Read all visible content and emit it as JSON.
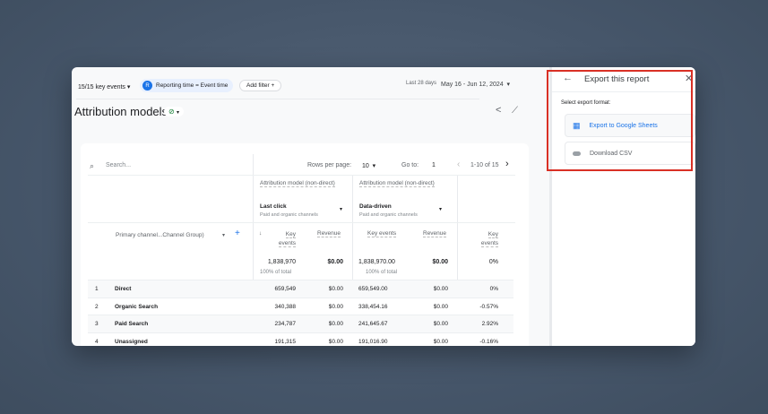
{
  "toolbar": {
    "key_events": "15/15 key events",
    "reporting_badge": "R",
    "reporting": "Reporting time = Event time",
    "add_filter": "Add filter",
    "date_label": "Last 28 days",
    "date_range": "May 16 - Jun 12, 2024"
  },
  "page": {
    "title": "Attribution models"
  },
  "table": {
    "search_placeholder": "Search...",
    "rows_per_page_label": "Rows per page:",
    "rows_per_page": "10",
    "goto_label": "Go to:",
    "goto": "1",
    "range": "1-10 of 15",
    "group1": {
      "title": "Attribution model (non-direct)",
      "model": "Last click",
      "sub": "Paid and organic channels"
    },
    "group2": {
      "title": "Attribution model (non-direct)",
      "model": "Data-driven",
      "sub": "Paid and organic channels"
    },
    "dimension": "Primary channel...Channel Group)",
    "cols": {
      "key_events": "Key events",
      "revenue": "Revenue"
    },
    "totals": {
      "k1": "1,838,970",
      "r1": "$0.00",
      "k2": "1,838,970.00",
      "r2": "$0.00",
      "pct": "0%",
      "of_total": "100% of total"
    },
    "rows": [
      {
        "n": "1",
        "name": "Direct",
        "k1": "659,549",
        "r1": "$0.00",
        "k2": "659,549.00",
        "r2": "$0.00",
        "pct": "0%"
      },
      {
        "n": "2",
        "name": "Organic Search",
        "k1": "340,388",
        "r1": "$0.00",
        "k2": "338,454.16",
        "r2": "$0.00",
        "pct": "-0.57%"
      },
      {
        "n": "3",
        "name": "Paid Search",
        "k1": "234,787",
        "r1": "$0.00",
        "k2": "241,645.67",
        "r2": "$0.00",
        "pct": "2.92%"
      },
      {
        "n": "4",
        "name": "Unassigned",
        "k1": "191,315",
        "r1": "$0.00",
        "k2": "191,016.90",
        "r2": "$0.00",
        "pct": "-0.16%"
      }
    ]
  },
  "export": {
    "title": "Export this report",
    "subtitle": "Select export format:",
    "sheets": "Export to Google Sheets",
    "csv": "Download CSV"
  },
  "colors": {
    "accent": "#1a73e8",
    "highlight": "#d93025"
  }
}
